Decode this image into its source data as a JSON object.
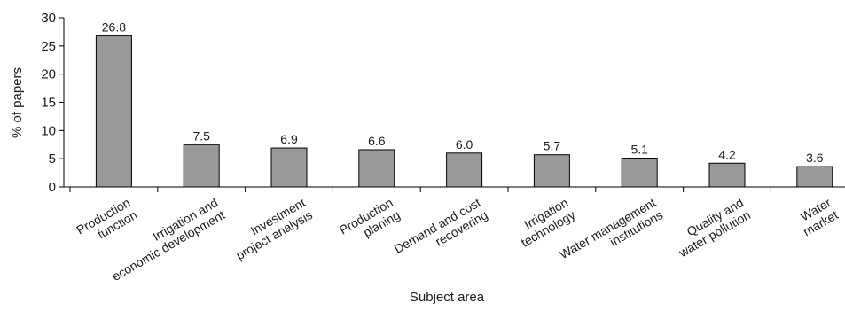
{
  "chart_data": {
    "type": "bar",
    "title": "",
    "xlabel": "Subject area",
    "ylabel": "% of papers",
    "ylim": [
      0,
      30
    ],
    "yticks": [
      0,
      5,
      10,
      15,
      20,
      25,
      30
    ],
    "grid": false,
    "legend": "none",
    "bar_color": "#999999",
    "categories": [
      [
        "Production",
        "function"
      ],
      [
        "Irrigation and",
        "economic development"
      ],
      [
        "Investment",
        "project analysis"
      ],
      [
        "Production",
        "planing"
      ],
      [
        "Demand and cost",
        "recovering"
      ],
      [
        "Irrigation",
        "technology"
      ],
      [
        "Water management",
        "institutions"
      ],
      [
        "Quality and",
        "water pollution"
      ],
      [
        "Water",
        "market"
      ]
    ],
    "values": [
      26.8,
      7.5,
      6.9,
      6.6,
      6.0,
      5.7,
      5.1,
      4.2,
      3.6
    ],
    "data_labels": [
      "26.8",
      "7.5",
      "6.9",
      "6.6",
      "6.0",
      "5.7",
      "5.1",
      "4.2",
      "3.6"
    ]
  }
}
